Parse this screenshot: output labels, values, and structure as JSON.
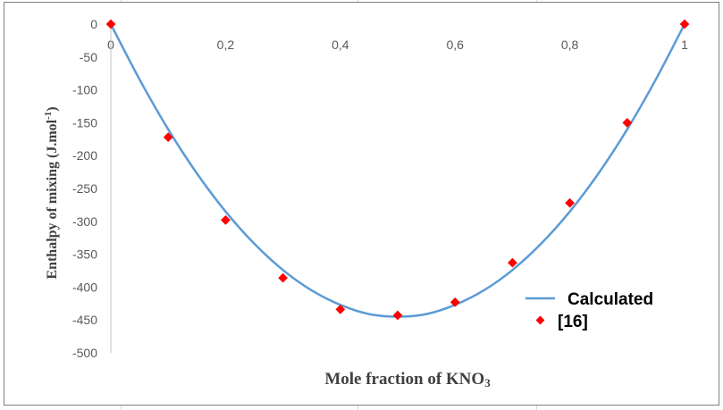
{
  "chart_data": {
    "type": "scatter",
    "title": "",
    "xlabel": "Mole fraction of KNO",
    "xlabel_sub": "3",
    "ylabel": "Enthalpy of mixing (J.mol",
    "ylabel_sup": "-1",
    "ylabel_end": ")",
    "xlim": [
      0,
      1
    ],
    "ylim": [
      -500,
      0
    ],
    "x_ticks": [
      "0",
      "0,2",
      "0,4",
      "0,6",
      "0,8",
      "1"
    ],
    "y_ticks": [
      "0",
      "-50",
      "-100",
      "-150",
      "-200",
      "-250",
      "-300",
      "-350",
      "-400",
      "-450",
      "-500"
    ],
    "grid": false,
    "legend_position": "bottom-right",
    "series": [
      {
        "name": "Calculated",
        "style": "line",
        "color": "#5b9bd5",
        "x": [
          0,
          0.05,
          0.1,
          0.15,
          0.2,
          0.25,
          0.3,
          0.35,
          0.4,
          0.45,
          0.5,
          0.55,
          0.6,
          0.65,
          0.7,
          0.75,
          0.8,
          0.85,
          0.9,
          0.95,
          1
        ],
        "y": [
          0,
          -84,
          -160,
          -227,
          -285,
          -334,
          -374,
          -405,
          -427,
          -441,
          -445,
          -441,
          -427,
          -405,
          -374,
          -334,
          -285,
          -227,
          -160,
          -84,
          0
        ]
      },
      {
        "name": "[16]",
        "style": "marker",
        "marker": "diamond",
        "color": "#ff0000",
        "x": [
          0,
          0.1,
          0.2,
          0.3,
          0.4,
          0.5,
          0.6,
          0.7,
          0.8,
          0.9,
          1
        ],
        "y": [
          0,
          -172,
          -298,
          -386,
          -434,
          -443,
          -423,
          -363,
          -272,
          -150,
          0
        ]
      }
    ]
  }
}
